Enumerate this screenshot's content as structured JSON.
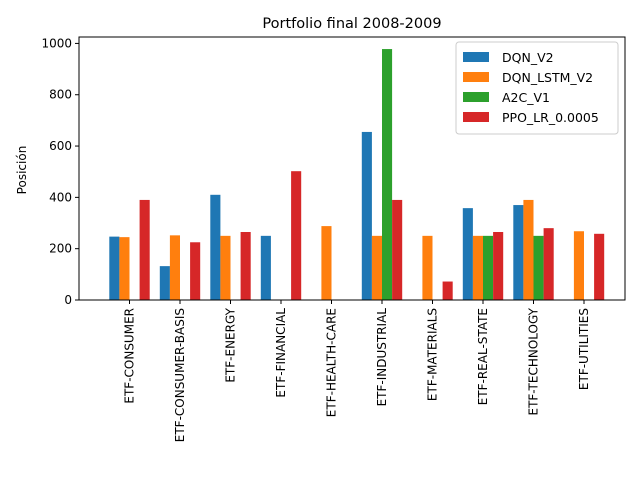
{
  "chart_data": {
    "type": "bar",
    "title": "Portfolio final 2008-2009",
    "xlabel": "",
    "ylabel": "Posición",
    "ylim": [
      0,
      1025
    ],
    "yticks": [
      0,
      200,
      400,
      600,
      800,
      1000
    ],
    "grid": false,
    "legend_position": "top-right",
    "categories": [
      "ETF-CONSUMER",
      "ETF-CONSUMER-BASIS",
      "ETF-ENERGY",
      "ETF-FINANCIAL",
      "ETF-HEALTH-CARE",
      "ETF-INDUSTRIAL",
      "ETF-MATERIALS",
      "ETF-REAL-STATE",
      "ETF-TECHNOLOGY",
      "ETF-UTILITIES"
    ],
    "series": [
      {
        "name": "DQN_V2",
        "color": "#1f77b4",
        "values": [
          247,
          132,
          410,
          250,
          0,
          655,
          0,
          358,
          370,
          0
        ]
      },
      {
        "name": "DQN_LSTM_V2",
        "color": "#ff7f0e",
        "values": [
          245,
          252,
          250,
          0,
          288,
          250,
          250,
          250,
          390,
          268
        ]
      },
      {
        "name": "A2C_V1",
        "color": "#2ca02c",
        "values": [
          0,
          0,
          0,
          0,
          0,
          978,
          0,
          250,
          250,
          0
        ]
      },
      {
        "name": "PPO_LR_0.0005",
        "color": "#d62728",
        "values": [
          390,
          225,
          265,
          502,
          0,
          390,
          72,
          265,
          280,
          258
        ]
      }
    ]
  }
}
